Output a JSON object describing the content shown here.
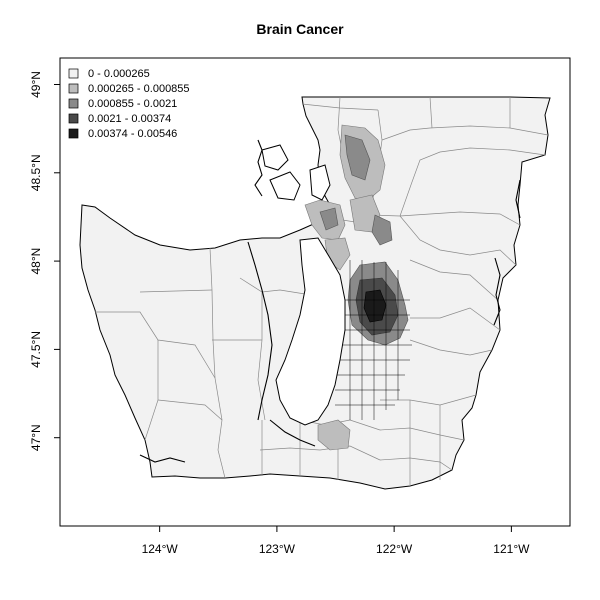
{
  "title": "Brain Cancer",
  "legend": {
    "placement": "top-left",
    "items": [
      {
        "label": "0 - 0.000265",
        "color": "#f2f2f2"
      },
      {
        "label": "0.000265 - 0.000855",
        "color": "#bdbdbd"
      },
      {
        "label": "0.000855 - 0.0021",
        "color": "#8a8a8a"
      },
      {
        "label": "0.0021 - 0.00374",
        "color": "#4a4a4a"
      },
      {
        "label": "0.00374 - 0.00546",
        "color": "#1a1a1a"
      }
    ]
  },
  "x_axis": {
    "ticks": [
      {
        "value": -124,
        "label": "124°W"
      },
      {
        "value": -123,
        "label": "123°W"
      },
      {
        "value": -122,
        "label": "122°W"
      },
      {
        "value": -121,
        "label": "121°W"
      }
    ],
    "range": [
      -124.85,
      -120.5
    ]
  },
  "y_axis": {
    "ticks": [
      {
        "value": 47,
        "label": "47°N"
      },
      {
        "value": 47.5,
        "label": "47.5°N"
      },
      {
        "value": 48,
        "label": "48°N"
      },
      {
        "value": 48.5,
        "label": "48.5°N"
      },
      {
        "value": 49,
        "label": "49°N"
      }
    ],
    "range": [
      46.5,
      49.15
    ]
  },
  "colors": {
    "region_fill": "#f2f2f2",
    "region_stroke": "#777777",
    "coastline": "#000000"
  }
}
